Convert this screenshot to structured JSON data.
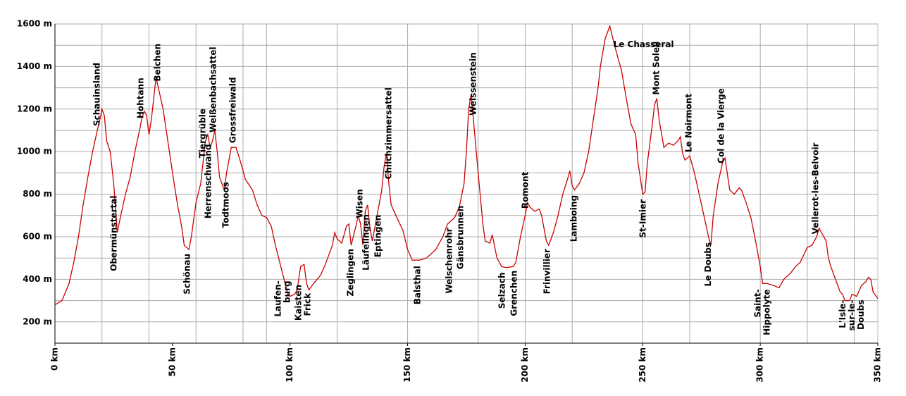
{
  "chart_data": {
    "type": "line",
    "xlim": [
      0,
      350
    ],
    "ylim": [
      100,
      1600
    ],
    "xticks": [
      {
        "value": 0,
        "label": "0 km"
      },
      {
        "value": 50,
        "label": "50 km"
      },
      {
        "value": 100,
        "label": "100 km"
      },
      {
        "value": 150,
        "label": "150 km"
      },
      {
        "value": 200,
        "label": "200 km"
      },
      {
        "value": 250,
        "label": "250 km"
      },
      {
        "value": 300,
        "label": "300 km"
      },
      {
        "value": 350,
        "label": "350 km"
      }
    ],
    "yticks": [
      {
        "value": 200,
        "label": "200 m"
      },
      {
        "value": 400,
        "label": "400 m"
      },
      {
        "value": 600,
        "label": "600 m"
      },
      {
        "value": 800,
        "label": "800 m"
      },
      {
        "value": 1000,
        "label": "1000 m"
      },
      {
        "value": 1200,
        "label": "1200 m"
      },
      {
        "value": 1400,
        "label": "1400 m"
      },
      {
        "value": 1600,
        "label": "1600 m"
      }
    ],
    "yminor": [
      300,
      500,
      700,
      900,
      1100,
      1300,
      1500
    ],
    "xgrid": [
      20,
      40,
      60,
      80,
      90,
      120,
      150,
      180,
      200,
      220,
      250,
      270,
      300,
      320,
      340
    ],
    "grid": true,
    "series": [
      {
        "color": "#cc0000",
        "x": [
          0,
          3,
          6,
          8,
          10,
          12,
          14,
          16,
          18,
          19.5,
          20,
          21,
          22,
          23.5,
          25,
          26,
          26.5,
          28,
          30,
          32,
          34,
          36,
          37,
          38,
          39,
          40,
          41,
          42,
          43,
          44,
          46,
          48,
          50,
          52,
          54,
          55,
          57,
          58,
          60,
          62,
          63,
          64,
          65,
          66,
          67,
          68,
          69,
          70,
          72,
          73,
          75,
          77,
          79,
          81,
          84,
          86,
          88,
          90,
          92,
          94,
          97,
          99,
          100,
          102,
          103,
          104.5,
          106,
          107,
          108,
          110,
          113,
          115,
          118,
          119,
          120,
          121,
          122,
          124,
          125,
          126,
          128,
          129,
          130,
          131,
          132,
          133,
          134,
          135,
          137,
          139,
          140,
          141,
          142,
          143,
          145,
          148,
          150,
          152,
          155,
          158,
          162,
          165,
          167,
          170,
          172,
          174,
          175,
          176,
          177,
          178,
          180,
          182,
          183,
          185,
          186,
          188,
          190,
          192,
          195,
          196,
          198,
          200,
          201,
          202,
          204,
          206,
          207,
          209,
          210,
          212,
          214,
          216,
          218,
          219,
          220,
          221,
          223,
          225,
          227,
          229,
          231,
          232,
          234,
          236,
          238,
          240,
          241,
          243,
          245,
          247,
          248,
          250,
          251,
          252,
          254,
          255,
          256,
          257,
          259,
          261,
          263,
          265,
          266,
          267,
          268,
          270,
          272,
          274,
          276,
          278,
          279,
          280,
          282,
          284,
          285,
          287,
          289,
          291,
          292,
          294,
          296,
          298,
          300,
          301,
          303,
          306,
          308,
          310,
          313,
          315,
          317,
          320,
          322,
          324,
          325,
          326,
          328,
          329,
          330,
          332,
          334,
          335,
          336,
          338,
          339,
          341,
          343,
          345,
          346,
          347,
          348,
          350
        ],
        "values": [
          280,
          300,
          380,
          480,
          600,
          750,
          880,
          1000,
          1100,
          1170,
          1200,
          1170,
          1050,
          1000,
          850,
          700,
          620,
          700,
          800,
          880,
          1000,
          1100,
          1160,
          1190,
          1170,
          1080,
          1150,
          1250,
          1350,
          1300,
          1200,
          1050,
          900,
          760,
          640,
          560,
          540,
          600,
          760,
          850,
          950,
          1050,
          1080,
          1020,
          1050,
          1100,
          1000,
          880,
          820,
          900,
          1020,
          1020,
          950,
          870,
          820,
          750,
          700,
          690,
          650,
          550,
          420,
          330,
          320,
          330,
          350,
          460,
          470,
          380,
          350,
          380,
          420,
          470,
          560,
          620,
          590,
          580,
          570,
          650,
          660,
          560,
          650,
          700,
          660,
          560,
          720,
          750,
          640,
          580,
          700,
          820,
          930,
          990,
          850,
          750,
          700,
          630,
          540,
          490,
          490,
          500,
          540,
          600,
          660,
          690,
          740,
          850,
          1000,
          1200,
          1270,
          1150,
          900,
          660,
          580,
          570,
          610,
          500,
          460,
          455,
          460,
          480,
          600,
          700,
          760,
          740,
          720,
          730,
          700,
          580,
          560,
          620,
          700,
          800,
          870,
          910,
          840,
          820,
          850,
          900,
          1000,
          1150,
          1300,
          1400,
          1530,
          1590,
          1500,
          1420,
          1380,
          1250,
          1130,
          1080,
          950,
          800,
          810,
          950,
          1120,
          1220,
          1250,
          1150,
          1020,
          1040,
          1030,
          1050,
          1070,
          990,
          960,
          980,
          900,
          800,
          700,
          600,
          560,
          700,
          850,
          950,
          970,
          820,
          800,
          830,
          820,
          760,
          690,
          580,
          460,
          380,
          380,
          370,
          360,
          400,
          430,
          460,
          480,
          550,
          560,
          600,
          640,
          620,
          580,
          500,
          460,
          400,
          340,
          330,
          300,
          300,
          330,
          320,
          370,
          390,
          410,
          400,
          340,
          310
        ]
      }
    ],
    "annotations": [
      {
        "lines": [
          "Schauinsland"
        ],
        "x": 18,
        "side": "above"
      },
      {
        "lines": [
          "Obermünstertal"
        ],
        "x": 25.2,
        "side": "below"
      },
      {
        "lines": [
          "Hohtann"
        ],
        "x": 36.6,
        "side": "above"
      },
      {
        "lines": [
          "Belchen"
        ],
        "x": 43.8,
        "side": "above"
      },
      {
        "lines": [
          "Schönau"
        ],
        "x": 56.3,
        "side": "below"
      },
      {
        "lines": [
          "Tiergrüble"
        ],
        "x": 63,
        "side": "above"
      },
      {
        "lines": [
          "Herrenschwand"
        ],
        "x": 65.3,
        "side": "below"
      },
      {
        "lines": [
          "Weißenbachsattel"
        ],
        "x": 67.4,
        "side": "above"
      },
      {
        "lines": [
          "Todtmoos"
        ],
        "x": 72.8,
        "side": "below"
      },
      {
        "lines": [
          "Grossfreiwald"
        ],
        "x": 75.8,
        "side": "above"
      },
      {
        "lines": [
          "Laufen-",
          "burg"
        ],
        "x": 97,
        "side": "below"
      },
      {
        "lines": [
          "Kaisten"
        ],
        "x": 103.7,
        "side": "below"
      },
      {
        "lines": [
          "Frick"
        ],
        "x": 107.6,
        "side": "below"
      },
      {
        "lines": [
          "Zeglingen"
        ],
        "x": 125.9,
        "side": "below"
      },
      {
        "lines": [
          "Wisen"
        ],
        "x": 129.8,
        "side": "above"
      },
      {
        "lines": [
          "Läufelingen"
        ],
        "x": 132.4,
        "side": "below"
      },
      {
        "lines": [
          "Eptingen"
        ],
        "x": 137.5,
        "side": "below"
      },
      {
        "lines": [
          "Chilchzimmersattel"
        ],
        "x": 142,
        "side": "above"
      },
      {
        "lines": [
          "Balsthal"
        ],
        "x": 154.3,
        "side": "below"
      },
      {
        "lines": [
          "Welschenrohr"
        ],
        "x": 167.8,
        "side": "below"
      },
      {
        "lines": [
          "Gänsbrunnen"
        ],
        "x": 172.6,
        "side": "below"
      },
      {
        "lines": [
          "Weissenstein"
        ],
        "x": 178,
        "side": "above"
      },
      {
        "lines": [
          "Selzach"
        ],
        "x": 190.3,
        "side": "below"
      },
      {
        "lines": [
          "Grenchen"
        ],
        "x": 195.4,
        "side": "below"
      },
      {
        "lines": [
          "Romont"
        ],
        "x": 200.2,
        "side": "above"
      },
      {
        "lines": [
          "Frinvillier"
        ],
        "x": 209.5,
        "side": "below"
      },
      {
        "lines": [
          "Lamboing"
        ],
        "x": 220.9,
        "side": "below"
      },
      {
        "lines": [
          "Le Chasseral"
        ],
        "x": 237.5,
        "side": "right"
      },
      {
        "lines": [
          "St-Imier"
        ],
        "x": 250.2,
        "side": "below"
      },
      {
        "lines": [
          "Mont Soleil"
        ],
        "x": 255.9,
        "side": "above"
      },
      {
        "lines": [
          "Le Noirmont"
        ],
        "x": 269.7,
        "side": "above"
      },
      {
        "lines": [
          "Le Doubs"
        ],
        "x": 278,
        "side": "below"
      },
      {
        "lines": [
          "Col de la Vierge"
        ],
        "x": 283.5,
        "side": "above"
      },
      {
        "lines": [
          "Saint-",
          "Hippolyte"
        ],
        "x": 301,
        "side": "below"
      },
      {
        "lines": [
          "Vellerot-les-Belvoir"
        ],
        "x": 323.6,
        "side": "above"
      },
      {
        "lines": [
          "L'Isle-",
          "sur-le-",
          "Doubs"
        ],
        "x": 339,
        "side": "below"
      }
    ]
  }
}
